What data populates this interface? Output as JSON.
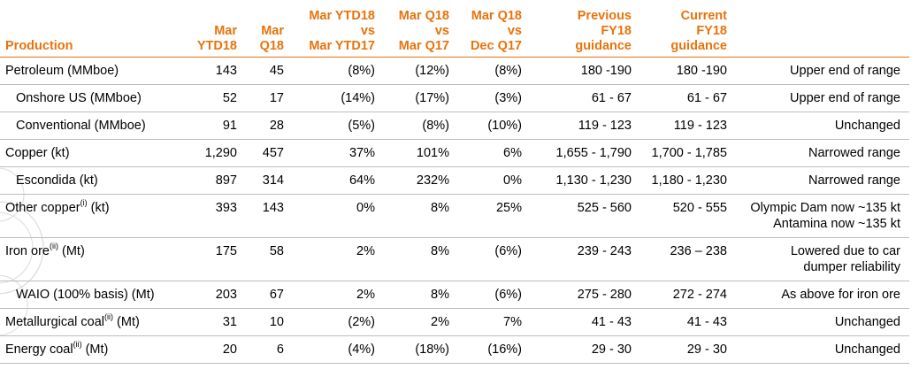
{
  "header": {
    "production": "Production",
    "mar_ytd18": [
      "Mar",
      "YTD18"
    ],
    "mar_q18": [
      "Mar",
      "Q18"
    ],
    "ytd_vs": [
      "Mar YTD18",
      "vs",
      "Mar YTD17"
    ],
    "q_vs_q": [
      "Mar Q18",
      "vs",
      "Mar Q17"
    ],
    "q_vs_dec": [
      "Mar Q18",
      "vs",
      "Dec Q17"
    ],
    "prev_guidance": [
      "Previous",
      "FY18",
      "guidance"
    ],
    "curr_guidance": [
      "Current",
      "FY18",
      "guidance"
    ]
  },
  "rows": [
    {
      "name": "Petroleum (MMboe)",
      "sup": "",
      "unit": "",
      "ytd": "143",
      "q": "45",
      "ytd_vs": "(8%)",
      "q_vs_q": "(12%)",
      "q_vs_dec": "(8%)",
      "prev": "180 -190",
      "curr": "180 -190",
      "comment": [
        "Upper end of range"
      ]
    },
    {
      "name": "Onshore US (MMboe)",
      "sup": "",
      "unit": "",
      "ytd": "52",
      "q": "17",
      "ytd_vs": "(14%)",
      "q_vs_q": "(17%)",
      "q_vs_dec": "(3%)",
      "prev": "61 - 67",
      "curr": "61 - 67",
      "comment": [
        "Upper end of range"
      ]
    },
    {
      "name": "Conventional (MMboe)",
      "sup": "",
      "unit": "",
      "ytd": "91",
      "q": "28",
      "ytd_vs": "(5%)",
      "q_vs_q": "(8%)",
      "q_vs_dec": "(10%)",
      "prev": "119 - 123",
      "curr": "119 - 123",
      "comment": [
        "Unchanged"
      ]
    },
    {
      "name": "Copper (kt)",
      "sup": "",
      "unit": "",
      "ytd": "1,290",
      "q": "457",
      "ytd_vs": "37%",
      "q_vs_q": "101%",
      "q_vs_dec": "6%",
      "prev": "1,655 - 1,790",
      "curr": "1,700 - 1,785",
      "comment": [
        "Narrowed range"
      ]
    },
    {
      "name": "Escondida (kt)",
      "sup": "",
      "unit": "",
      "ytd": "897",
      "q": "314",
      "ytd_vs": "64%",
      "q_vs_q": "232%",
      "q_vs_dec": "0%",
      "prev": "1,130 - 1,230",
      "curr": "1,180 - 1,230",
      "comment": [
        "Narrowed range"
      ]
    },
    {
      "name": "Other copper",
      "sup": "(i)",
      "unit": " (kt)",
      "ytd": "393",
      "q": "143",
      "ytd_vs": "0%",
      "q_vs_q": "8%",
      "q_vs_dec": "25%",
      "prev": "525 - 560",
      "curr": "520 - 555",
      "comment": [
        "Olympic Dam now ~135 kt",
        "Antamina now ~135 kt"
      ]
    },
    {
      "name": "Iron ore",
      "sup": "(ii)",
      "unit": " (Mt)",
      "ytd": "175",
      "q": "58",
      "ytd_vs": "2%",
      "q_vs_q": "8%",
      "q_vs_dec": "(6%)",
      "prev": "239 - 243",
      "curr": "236 – 238",
      "comment": [
        "Lowered due to car",
        "dumper reliability"
      ]
    },
    {
      "name": "WAIO (100% basis) (Mt)",
      "sup": "",
      "unit": "",
      "ytd": "203",
      "q": "67",
      "ytd_vs": "2%",
      "q_vs_q": "8%",
      "q_vs_dec": "(6%)",
      "prev": "275 - 280",
      "curr": "272 - 274",
      "comment": [
        "As above for iron ore"
      ]
    },
    {
      "name": "Metallurgical coal",
      "sup": "(ii)",
      "unit": " (Mt)",
      "ytd": "31",
      "q": "10",
      "ytd_vs": "(2%)",
      "q_vs_q": "2%",
      "q_vs_dec": "7%",
      "prev": "41 - 43",
      "curr": "41 - 43",
      "comment": [
        "Unchanged"
      ]
    },
    {
      "name": "Energy coal",
      "sup": "(ii)",
      "unit": " (Mt)",
      "ytd": "20",
      "q": "6",
      "ytd_vs": "(4%)",
      "q_vs_q": "(18%)",
      "q_vs_dec": "(16%)",
      "prev": "29 - 30",
      "curr": "29 - 30",
      "comment": [
        "Unchanged"
      ]
    }
  ],
  "colors": {
    "accent": "#E8730C",
    "rule": "#bdbdbd",
    "text": "#000000"
  }
}
